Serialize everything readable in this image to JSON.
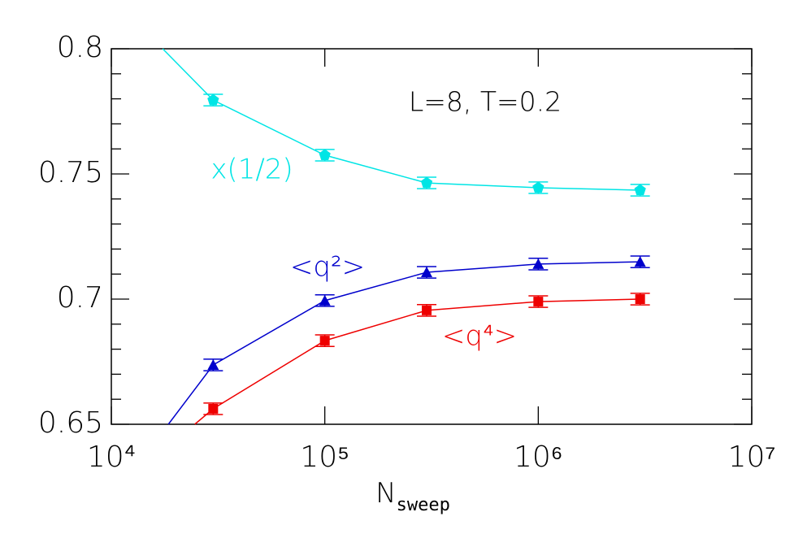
{
  "chart_data": {
    "type": "line",
    "xlabel": "N",
    "xlabel_sub": "sweep",
    "log_x": true,
    "xlim": [
      10000,
      10000000
    ],
    "xticks": [
      {
        "value": 10000,
        "label": "10⁴"
      },
      {
        "value": 100000,
        "label": "10⁵"
      },
      {
        "value": 1000000,
        "label": "10⁶"
      },
      {
        "value": 10000000,
        "label": "10⁷"
      }
    ],
    "ylim": [
      0.65,
      0.8
    ],
    "yticks": [
      0.65,
      0.7,
      0.75,
      0.8
    ],
    "yminor_ticks": [
      0.66,
      0.67,
      0.68,
      0.69,
      0.71,
      0.72,
      0.73,
      0.74,
      0.76,
      0.77,
      0.78,
      0.79
    ],
    "annotation": "L=8,  T=0.2",
    "x": [
      30000,
      100000,
      300000,
      1000000,
      3000000
    ],
    "series": [
      {
        "name": "x(1/2)",
        "color": "#00e5e5",
        "marker": "pentagon",
        "values": [
          0.7795,
          0.7575,
          0.7464,
          0.7445,
          0.7435
        ],
        "errors": [
          0.0023,
          0.0023,
          0.0023,
          0.0023,
          0.0023
        ],
        "line_start": {
          "x": 17400,
          "y": 0.8
        }
      },
      {
        "name": "<q²>",
        "color": "#0000cc",
        "marker": "triangle",
        "values": [
          0.6737,
          0.6994,
          0.7107,
          0.714,
          0.7149
        ],
        "errors": [
          0.0023,
          0.0023,
          0.0023,
          0.0023,
          0.0023
        ],
        "line_start": {
          "x": 18500,
          "y": 0.65
        }
      },
      {
        "name": "<q⁴>",
        "color": "#ee0000",
        "marker": "square",
        "values": [
          0.6562,
          0.6834,
          0.6955,
          0.699,
          0.7
        ],
        "errors": [
          0.0023,
          0.0023,
          0.0023,
          0.0023,
          0.0023
        ],
        "line_start": {
          "x": 24600,
          "y": 0.65
        }
      }
    ]
  }
}
